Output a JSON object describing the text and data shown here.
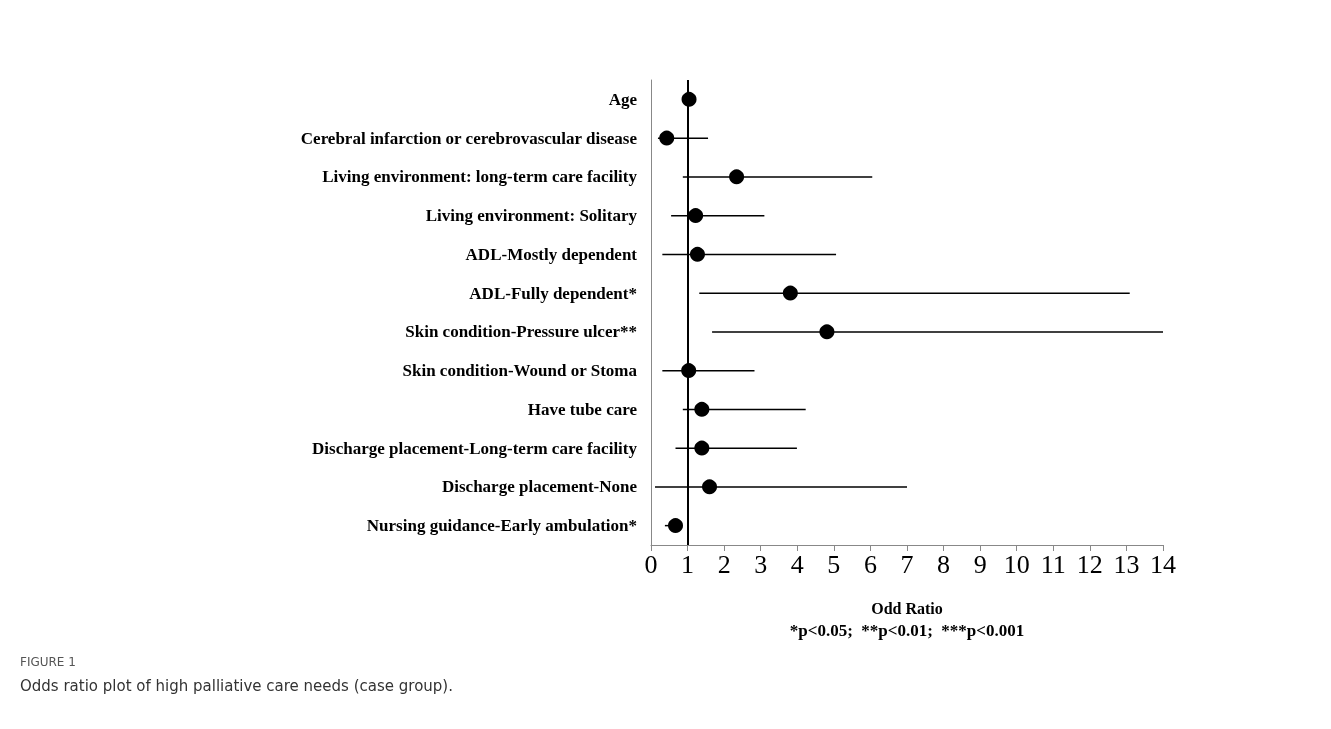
{
  "chart_data": {
    "type": "scatter",
    "orientation": "horizontal",
    "categories": [
      "Age",
      "Cerebral infarction or cerebrovascular disease",
      "Living environment: long-term care facility",
      "Living environment: Solitary",
      "ADL-Mostly dependent",
      "ADL-Fully dependent*",
      "Skin condition-Pressure ulcer**",
      "Skin condition-Wound or Stoma",
      "Have tube care",
      "Discharge placement-Long-term care facility",
      "Discharge placement-None",
      "Nursing guidance-Early ambulation*"
    ],
    "values": [
      1.04,
      0.43,
      2.34,
      1.22,
      1.27,
      3.81,
      4.81,
      1.03,
      1.39,
      1.39,
      1.6,
      0.67
    ],
    "errors": [
      null,
      [
        0.19,
        1.56
      ],
      [
        0.87,
        6.05
      ],
      [
        0.55,
        3.1
      ],
      [
        0.31,
        5.06
      ],
      [
        1.32,
        13.09
      ],
      [
        1.67,
        14.0
      ],
      [
        0.31,
        2.83
      ],
      [
        0.87,
        4.23
      ],
      [
        0.67,
        3.99
      ],
      [
        0.11,
        7.0
      ],
      [
        0.38,
        0.85
      ]
    ],
    "color": "#000000",
    "marker": "circle",
    "grid": false,
    "xlim": [
      0,
      14
    ],
    "xticks": [
      0,
      1,
      2,
      3,
      4,
      5,
      6,
      7,
      8,
      9,
      10,
      11,
      12,
      13,
      14
    ],
    "xlabel": "Odd Ratio",
    "ref_lines": [
      {
        "axis": "x",
        "value": 1
      }
    ],
    "annotations": [
      "*p<0.05;  **p<0.01;  ***p<0.001",
      "FIGURE 1",
      "Odds ratio plot of high palliative care needs (case group)."
    ]
  }
}
